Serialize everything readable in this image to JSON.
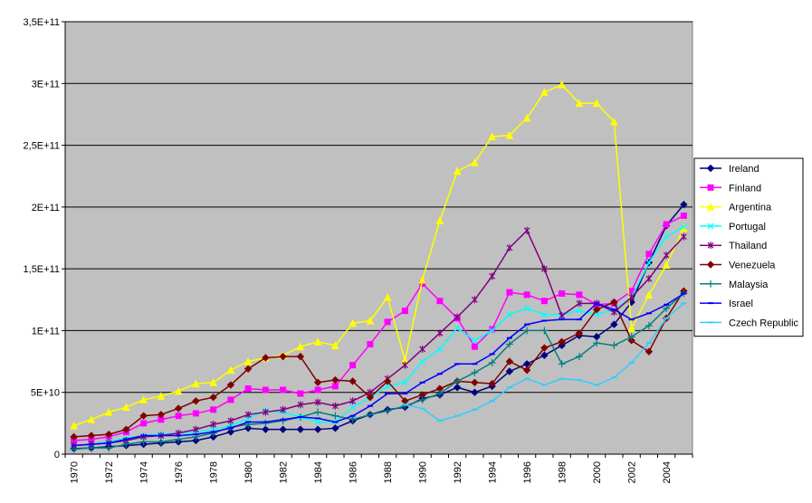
{
  "chart_data": {
    "type": "line",
    "title": "",
    "xlabel": "",
    "ylabel": "",
    "ylim": [
      0,
      350000000000
    ],
    "y_ticks": [
      0,
      50000000000,
      100000000000,
      150000000000,
      200000000000,
      250000000000,
      300000000000,
      350000000000
    ],
    "y_tick_labels": [
      "0",
      "5E+10",
      "1E+11",
      "1,5E+11",
      "2E+11",
      "2,5E+11",
      "3E+11",
      "3,5E+11"
    ],
    "x": [
      1970,
      1971,
      1972,
      1973,
      1974,
      1975,
      1976,
      1977,
      1978,
      1979,
      1980,
      1981,
      1982,
      1983,
      1984,
      1985,
      1986,
      1987,
      1988,
      1989,
      1990,
      1991,
      1992,
      1993,
      1994,
      1995,
      1996,
      1997,
      1998,
      1999,
      2000,
      2001,
      2002,
      2003,
      2004,
      2005
    ],
    "x_tick_labels": [
      "1970",
      "1972",
      "1974",
      "1976",
      "1978",
      "1980",
      "1982",
      "1984",
      "1986",
      "1988",
      "1990",
      "1992",
      "1994",
      "1996",
      "1998",
      "2000",
      "2002",
      "2004"
    ],
    "grid": "horizontal",
    "plot_background": "#c0c0c0",
    "legend_position": "right",
    "series": [
      {
        "name": "Ireland",
        "color": "#000080",
        "marker": "diamond",
        "values": [
          4500000000.0,
          5000000000.0,
          6000000000.0,
          7000000000.0,
          8000000000.0,
          9000000000.0,
          10000000000.0,
          11000000000.0,
          14000000000.0,
          18000000000.0,
          21000000000.0,
          20000000000.0,
          20000000000.0,
          20000000000.0,
          20000000000.0,
          21000000000.0,
          27000000000.0,
          32000000000.0,
          36000000000.0,
          38000000000.0,
          45000000000.0,
          48000000000.0,
          54000000000.0,
          50000000000.0,
          55000000000.0,
          67000000000.0,
          73000000000.0,
          80000000000.0,
          88000000000.0,
          96000000000.0,
          95000000000.0,
          105000000000.0,
          123000000000.0,
          155000000000.0,
          185000000000.0,
          202000000000.0
        ]
      },
      {
        "name": "Finland",
        "color": "#ff00ff",
        "marker": "square",
        "values": [
          11000000000.0,
          12000000000.0,
          14000000000.0,
          18000000000.0,
          25000000000.0,
          28000000000.0,
          31000000000.0,
          33000000000.0,
          36000000000.0,
          44000000000.0,
          53000000000.0,
          52000000000.0,
          52000000000.0,
          49000000000.0,
          52000000000.0,
          55000000000.0,
          72000000000.0,
          89000000000.0,
          107000000000.0,
          116000000000.0,
          138000000000.0,
          124000000000.0,
          110000000000.0,
          87000000000.0,
          101000000000.0,
          131000000000.0,
          129000000000.0,
          124000000000.0,
          130000000000.0,
          129000000000.0,
          121000000000.0,
          122000000000.0,
          132000000000.0,
          162000000000.0,
          186000000000.0,
          193000000000.0
        ]
      },
      {
        "name": "Argentina",
        "color": "#ffff00",
        "marker": "triangle",
        "values": [
          23000000000.0,
          28000000000.0,
          34000000000.0,
          38000000000.0,
          44000000000.0,
          47000000000.0,
          51000000000.0,
          57000000000.0,
          58000000000.0,
          68000000000.0,
          75000000000.0,
          78000000000.0,
          80000000000.0,
          87000000000.0,
          91000000000.0,
          88000000000.0,
          106000000000.0,
          108000000000.0,
          127000000000.0,
          76000000000.0,
          141000000000.0,
          189000000000.0,
          229000000000.0,
          236000000000.0,
          257000000000.0,
          258000000000.0,
          272000000000.0,
          293000000000.0,
          299000000000.0,
          284000000000.0,
          284000000000.0,
          269000000000.0,
          102000000000.0,
          129000000000.0,
          153000000000.0,
          183000000000.0
        ]
      },
      {
        "name": "Portugal",
        "color": "#00ffff",
        "marker": "x",
        "values": [
          7000000000.0,
          8000000000.0,
          10000000000.0,
          13000000000.0,
          15000000000.0,
          16000000000.0,
          17000000000.0,
          18000000000.0,
          20000000000.0,
          23000000000.0,
          29000000000.0,
          35000000000.0,
          34000000000.0,
          30000000000.0,
          26000000000.0,
          26000000000.0,
          38000000000.0,
          46000000000.0,
          55000000000.0,
          58000000000.0,
          75000000000.0,
          85000000000.0,
          102000000000.0,
          92000000000.0,
          100000000000.0,
          113000000000.0,
          118000000000.0,
          113000000000.0,
          113000000000.0,
          116000000000.0,
          113000000000.0,
          117000000000.0,
          127000000000.0,
          155000000000.0,
          176000000000.0,
          184000000000.0
        ]
      },
      {
        "name": "Thailand",
        "color": "#800080",
        "marker": "star",
        "values": [
          7000000000.0,
          8000000000.0,
          9000000000.0,
          11000000000.0,
          14000000000.0,
          15000000000.0,
          17000000000.0,
          20000000000.0,
          24000000000.0,
          27000000000.0,
          32000000000.0,
          34000000000.0,
          36000000000.0,
          40000000000.0,
          42000000000.0,
          39000000000.0,
          43000000000.0,
          50000000000.0,
          61000000000.0,
          72000000000.0,
          85000000000.0,
          98000000000.0,
          111000000000.0,
          125000000000.0,
          144000000000.0,
          167000000000.0,
          181000000000.0,
          150000000000.0,
          112000000000.0,
          122000000000.0,
          122000000000.0,
          115000000000.0,
          127000000000.0,
          142000000000.0,
          161000000000.0,
          176000000000.0
        ]
      },
      {
        "name": "Venezuela",
        "color": "#800000",
        "marker": "diamond",
        "values": [
          14000000000.0,
          15000000000.0,
          16000000000.0,
          20000000000.0,
          31000000000.0,
          32000000000.0,
          37000000000.0,
          43000000000.0,
          46000000000.0,
          56000000000.0,
          69000000000.0,
          78000000000.0,
          79000000000.0,
          79000000000.0,
          58000000000.0,
          60000000000.0,
          59000000000.0,
          46000000000.0,
          59000000000.0,
          43000000000.0,
          48000000000.0,
          53000000000.0,
          59000000000.0,
          58000000000.0,
          57000000000.0,
          75000000000.0,
          68000000000.0,
          86000000000.0,
          91000000000.0,
          98000000000.0,
          117000000000.0,
          123000000000.0,
          92000000000.0,
          83000000000.0,
          110000000000.0,
          132000000000.0
        ]
      },
      {
        "name": "Malaysia",
        "color": "#008080",
        "marker": "plus",
        "values": [
          4000000000.0,
          5000000000.0,
          5000000000.0,
          8000000000.0,
          10000000000.0,
          10000000000.0,
          12000000000.0,
          14000000000.0,
          17000000000.0,
          22000000000.0,
          24000000000.0,
          25000000000.0,
          27000000000.0,
          30000000000.0,
          34000000000.0,
          31000000000.0,
          28000000000.0,
          32000000000.0,
          35000000000.0,
          39000000000.0,
          44000000000.0,
          49000000000.0,
          59000000000.0,
          66000000000.0,
          74000000000.0,
          89000000000.0,
          100000000000.0,
          100000000000.0,
          73000000000.0,
          79000000000.0,
          90000000000.0,
          88000000000.0,
          95000000000.0,
          104000000000.0,
          118000000000.0,
          130000000000.0
        ]
      },
      {
        "name": "Israel",
        "color": "#0000ff",
        "marker": "dash",
        "values": [
          7000000000.0,
          8000000000.0,
          9000000000.0,
          12000000000.0,
          15000000000.0,
          15000000000.0,
          15000000000.0,
          16000000000.0,
          18000000000.0,
          21000000000.0,
          26000000000.0,
          26000000000.0,
          28000000000.0,
          30000000000.0,
          29000000000.0,
          26000000000.0,
          31000000000.0,
          39000000000.0,
          49000000000.0,
          49000000000.0,
          58000000000.0,
          65000000000.0,
          73000000000.0,
          73000000000.0,
          81000000000.0,
          94000000000.0,
          105000000000.0,
          108000000000.0,
          109000000000.0,
          109000000000.0,
          122000000000.0,
          117000000000.0,
          109000000000.0,
          114000000000.0,
          121000000000.0,
          130000000000.0
        ]
      },
      {
        "name": "Czech Republic",
        "color": "#33ccff",
        "marker": "dash",
        "values": [
          null,
          null,
          null,
          null,
          null,
          null,
          null,
          null,
          null,
          null,
          null,
          null,
          null,
          null,
          null,
          null,
          null,
          null,
          null,
          40000000000.0,
          37000000000.0,
          27000000000.0,
          31000000000.0,
          36000000000.0,
          43000000000.0,
          54000000000.0,
          61000000000.0,
          56000000000.0,
          61000000000.0,
          60000000000.0,
          56000000000.0,
          62000000000.0,
          74000000000.0,
          90000000000.0,
          110000000000.0,
          122000000000.0
        ]
      }
    ]
  }
}
